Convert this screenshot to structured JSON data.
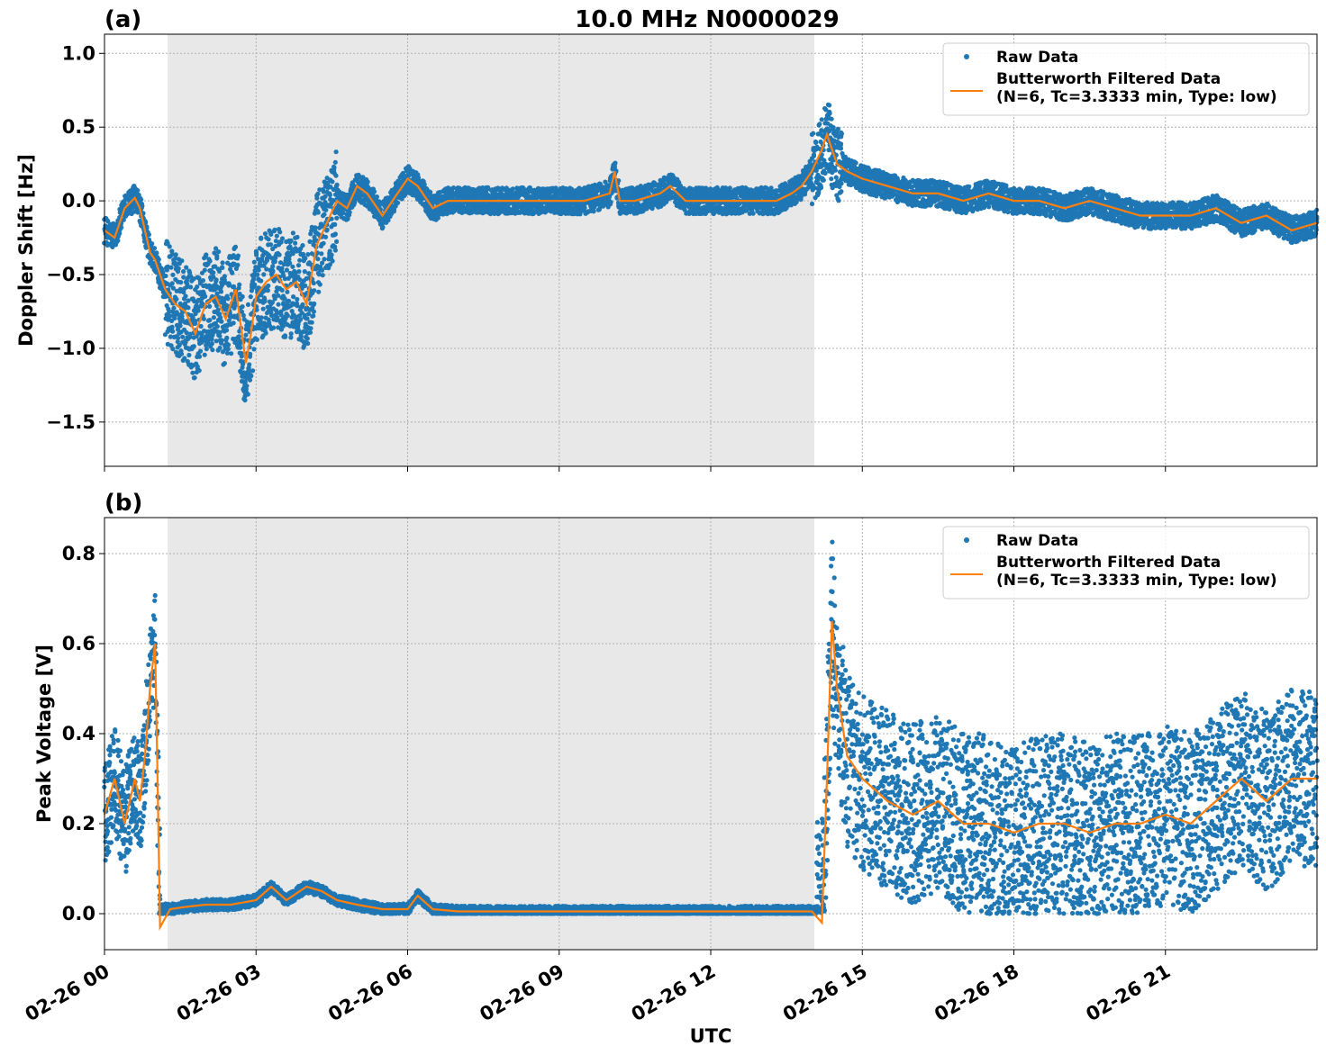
{
  "figure": {
    "title": "10.0 MHz N0000029",
    "xlabel": "UTC"
  },
  "chart_data": [
    {
      "type": "scatter",
      "panel_label": "(a)",
      "ylabel": "Doppler Shift [Hz]",
      "xlim_hours": [
        0,
        24
      ],
      "ylim": [
        -1.8,
        1.13
      ],
      "yticks": [
        1.0,
        0.5,
        0.0,
        -0.5,
        -1.0,
        -1.5
      ],
      "ytick_labels": [
        "1.0",
        "0.5",
        "0.0",
        "−0.5",
        "−1.0",
        "−1.5"
      ],
      "grid": true,
      "legend_placement": "top-right",
      "night_shading_hours": [
        1.25,
        14.05
      ],
      "series": [
        {
          "name": "Raw Data",
          "color": "#1f77b4",
          "x": [
            0,
            0.2,
            0.4,
            0.6,
            0.7,
            0.8,
            0.9,
            1.0,
            1.1,
            1.2,
            1.4,
            1.6,
            1.8,
            2.0,
            2.2,
            2.4,
            2.6,
            2.8,
            2.9,
            3.0,
            3.2,
            3.4,
            3.6,
            3.8,
            4.0,
            4.2,
            4.4,
            4.6,
            4.8,
            5.0,
            5.2,
            5.5,
            5.8,
            6.0,
            6.2,
            6.5,
            6.8,
            7.0,
            7.5,
            8.0,
            8.5,
            9.0,
            9.5,
            10.0,
            10.1,
            10.2,
            10.5,
            11.0,
            11.2,
            11.5,
            12.0,
            12.5,
            13.0,
            13.3,
            13.6,
            13.8,
            14.0,
            14.2,
            14.3,
            14.4,
            14.5,
            14.7,
            15.0,
            15.5,
            16.0,
            16.5,
            17.0,
            17.5,
            18.0,
            18.5,
            19.0,
            19.5,
            20.0,
            20.5,
            21.0,
            21.5,
            22.0,
            22.5,
            23.0,
            23.5,
            24.0
          ],
          "y": [
            -0.2,
            -0.25,
            -0.05,
            0.02,
            -0.05,
            -0.2,
            -0.35,
            -0.4,
            -0.5,
            -0.6,
            -0.7,
            -0.75,
            -0.9,
            -0.7,
            -0.65,
            -0.8,
            -0.6,
            -1.1,
            -0.9,
            -0.65,
            -0.55,
            -0.5,
            -0.6,
            -0.55,
            -0.7,
            -0.3,
            -0.15,
            0.0,
            -0.05,
            0.1,
            0.05,
            -0.1,
            0.05,
            0.15,
            0.1,
            -0.05,
            0.0,
            0.0,
            0.0,
            0.0,
            0.0,
            0.0,
            0.0,
            0.05,
            0.2,
            0.0,
            0.0,
            0.05,
            0.1,
            0.0,
            0.0,
            0.0,
            0.0,
            0.0,
            0.05,
            0.1,
            0.2,
            0.35,
            0.45,
            0.35,
            0.25,
            0.2,
            0.15,
            0.1,
            0.05,
            0.05,
            0.0,
            0.05,
            0.0,
            0.0,
            -0.05,
            0.0,
            -0.05,
            -0.1,
            -0.1,
            -0.1,
            -0.05,
            -0.15,
            -0.1,
            -0.2,
            -0.15
          ]
        },
        {
          "name": "Butterworth Filtered Data\n(N=6, Tc=3.3333 min, Type: low)",
          "color": "#ff7f0e",
          "x": [
            0,
            0.2,
            0.4,
            0.6,
            0.7,
            0.8,
            0.9,
            1.0,
            1.1,
            1.2,
            1.4,
            1.6,
            1.8,
            2.0,
            2.2,
            2.4,
            2.6,
            2.8,
            2.9,
            3.0,
            3.2,
            3.4,
            3.6,
            3.8,
            4.0,
            4.2,
            4.4,
            4.6,
            4.8,
            5.0,
            5.2,
            5.5,
            5.8,
            6.0,
            6.2,
            6.5,
            6.8,
            7.0,
            7.5,
            8.0,
            8.5,
            9.0,
            9.5,
            10.0,
            10.1,
            10.2,
            10.5,
            11.0,
            11.2,
            11.5,
            12.0,
            12.5,
            13.0,
            13.3,
            13.6,
            13.8,
            14.0,
            14.2,
            14.3,
            14.4,
            14.5,
            14.7,
            15.0,
            15.5,
            16.0,
            16.5,
            17.0,
            17.5,
            18.0,
            18.5,
            19.0,
            19.5,
            20.0,
            20.5,
            21.0,
            21.5,
            22.0,
            22.5,
            23.0,
            23.5,
            24.0
          ],
          "y": [
            -0.2,
            -0.25,
            -0.05,
            0.02,
            -0.05,
            -0.2,
            -0.35,
            -0.4,
            -0.5,
            -0.6,
            -0.7,
            -0.75,
            -0.9,
            -0.7,
            -0.65,
            -0.8,
            -0.6,
            -1.1,
            -0.9,
            -0.65,
            -0.55,
            -0.5,
            -0.6,
            -0.55,
            -0.7,
            -0.3,
            -0.15,
            0.0,
            -0.05,
            0.1,
            0.05,
            -0.1,
            0.05,
            0.15,
            0.1,
            -0.05,
            0.0,
            0.0,
            0.0,
            0.0,
            0.0,
            0.0,
            0.0,
            0.05,
            0.2,
            0.0,
            0.0,
            0.05,
            0.1,
            0.0,
            0.0,
            0.0,
            0.0,
            0.0,
            0.05,
            0.1,
            0.2,
            0.35,
            0.45,
            0.35,
            0.25,
            0.2,
            0.15,
            0.1,
            0.05,
            0.05,
            0.0,
            0.05,
            0.0,
            0.0,
            -0.05,
            0.0,
            -0.05,
            -0.1,
            -0.1,
            -0.1,
            -0.05,
            -0.15,
            -0.1,
            -0.2,
            -0.15
          ]
        }
      ]
    },
    {
      "type": "scatter",
      "panel_label": "(b)",
      "ylabel": "Peak Voltage [V]",
      "xlim_hours": [
        0,
        24
      ],
      "ylim": [
        -0.08,
        0.88
      ],
      "yticks": [
        0.0,
        0.2,
        0.4,
        0.6,
        0.8
      ],
      "ytick_labels": [
        "0.0",
        "0.2",
        "0.4",
        "0.6",
        "0.8"
      ],
      "grid": true,
      "legend_placement": "top-right",
      "night_shading_hours": [
        1.25,
        14.05
      ],
      "series": [
        {
          "name": "Raw Data",
          "color": "#1f77b4",
          "x": [
            0,
            0.2,
            0.4,
            0.6,
            0.7,
            0.8,
            0.9,
            1.0,
            1.05,
            1.1,
            1.3,
            1.6,
            2.0,
            2.5,
            3.0,
            3.3,
            3.6,
            4.0,
            4.3,
            4.6,
            5.0,
            5.5,
            6.0,
            6.2,
            6.5,
            7.0,
            8.0,
            9.0,
            10.0,
            11.0,
            12.0,
            13.0,
            14.0,
            14.2,
            14.3,
            14.4,
            14.5,
            14.7,
            15.0,
            15.5,
            16.0,
            16.5,
            17.0,
            17.5,
            18.0,
            18.5,
            19.0,
            19.5,
            20.0,
            20.5,
            21.0,
            21.5,
            22.0,
            22.5,
            23.0,
            23.5,
            24.0
          ],
          "y": [
            0.22,
            0.3,
            0.2,
            0.3,
            0.25,
            0.35,
            0.5,
            0.6,
            0.3,
            0.01,
            0.01,
            0.015,
            0.02,
            0.02,
            0.03,
            0.06,
            0.03,
            0.06,
            0.05,
            0.03,
            0.02,
            0.01,
            0.01,
            0.04,
            0.01,
            0.005,
            0.005,
            0.005,
            0.005,
            0.005,
            0.005,
            0.005,
            0.005,
            0.01,
            0.3,
            0.65,
            0.5,
            0.35,
            0.3,
            0.25,
            0.22,
            0.25,
            0.2,
            0.2,
            0.18,
            0.2,
            0.2,
            0.18,
            0.2,
            0.2,
            0.22,
            0.2,
            0.25,
            0.3,
            0.25,
            0.3,
            0.3
          ]
        },
        {
          "name": "Butterworth Filtered Data\n(N=6, Tc=3.3333 min, Type: low)",
          "color": "#ff7f0e",
          "x": [
            0,
            0.2,
            0.4,
            0.6,
            0.7,
            0.8,
            0.9,
            1.0,
            1.05,
            1.1,
            1.3,
            1.6,
            2.0,
            2.5,
            3.0,
            3.3,
            3.6,
            4.0,
            4.3,
            4.6,
            5.0,
            5.5,
            6.0,
            6.2,
            6.5,
            7.0,
            8.0,
            9.0,
            10.0,
            11.0,
            12.0,
            13.0,
            14.0,
            14.2,
            14.3,
            14.4,
            14.5,
            14.7,
            15.0,
            15.5,
            16.0,
            16.5,
            17.0,
            17.5,
            18.0,
            18.5,
            19.0,
            19.5,
            20.0,
            20.5,
            21.0,
            21.5,
            22.0,
            22.5,
            23.0,
            23.5,
            24.0
          ],
          "y": [
            0.22,
            0.3,
            0.2,
            0.3,
            0.25,
            0.35,
            0.5,
            0.6,
            0.3,
            -0.03,
            0.01,
            0.015,
            0.02,
            0.02,
            0.03,
            0.06,
            0.03,
            0.06,
            0.05,
            0.03,
            0.02,
            0.01,
            0.01,
            0.04,
            0.01,
            0.005,
            0.005,
            0.005,
            0.005,
            0.005,
            0.005,
            0.005,
            0.005,
            -0.02,
            0.3,
            0.65,
            0.5,
            0.35,
            0.3,
            0.25,
            0.22,
            0.25,
            0.2,
            0.2,
            0.18,
            0.2,
            0.2,
            0.18,
            0.2,
            0.2,
            0.22,
            0.2,
            0.25,
            0.3,
            0.25,
            0.3,
            0.3
          ]
        }
      ]
    }
  ],
  "x_axis": {
    "tick_hours": [
      0,
      3,
      6,
      9,
      12,
      15,
      18,
      21
    ],
    "tick_labels": [
      "02-26 00",
      "02-26 03",
      "02-26 06",
      "02-26 09",
      "02-26 12",
      "02-26 15",
      "02-26 18",
      "02-26 21"
    ]
  }
}
